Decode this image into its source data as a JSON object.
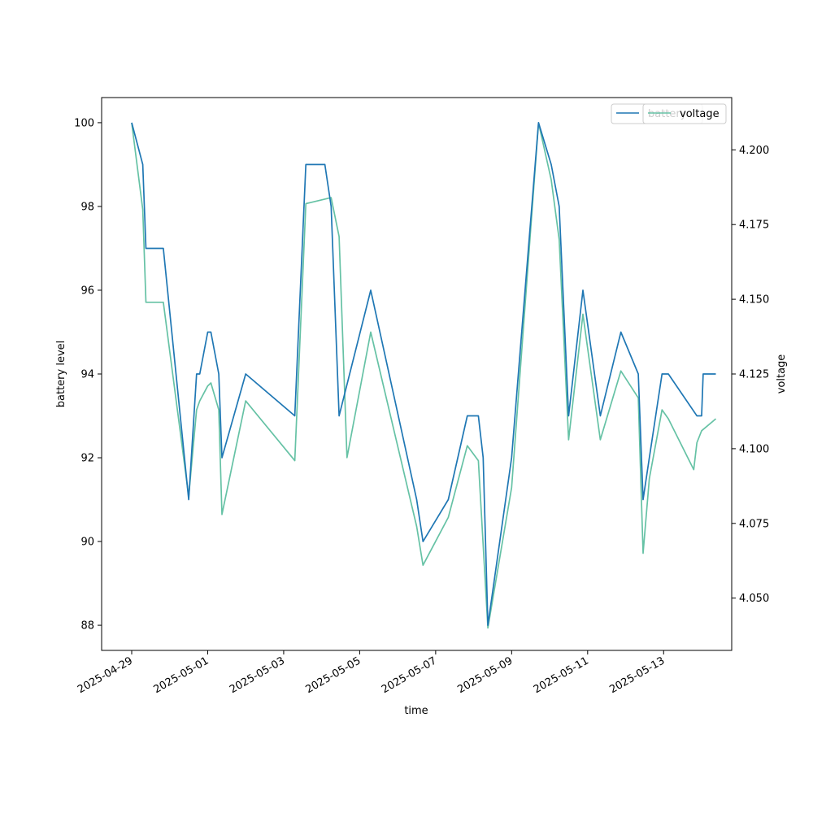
{
  "chart_data": {
    "type": "line",
    "title": "",
    "xlabel": "time",
    "ylabel": "battery level",
    "y2label": "voltage",
    "x_ticks": [
      "2025-04-29",
      "2025-05-01",
      "2025-05-03",
      "2025-05-05",
      "2025-05-07",
      "2025-05-09",
      "2025-05-11",
      "2025-05-13"
    ],
    "y_ticks": [
      88,
      90,
      92,
      94,
      96,
      98,
      100
    ],
    "y2_ticks": [
      "4.050",
      "4.075",
      "4.100",
      "4.125",
      "4.150",
      "4.175",
      "4.200"
    ],
    "xlim": [
      "2025-04-28T05:00",
      "2025-05-14T19:00"
    ],
    "ylim": [
      87.4,
      100.6
    ],
    "y2lim": [
      4.0325,
      4.2175
    ],
    "legend": {
      "placement": "top-right",
      "entries": [
        "battery",
        "voltage"
      ]
    },
    "colors": {
      "battery": "#1f77b4",
      "voltage": "#66c2a5"
    },
    "series": [
      {
        "name": "battery",
        "axis": "left",
        "x": [
          "2025-04-29T00:00",
          "2025-04-29T07:00",
          "2025-04-29T09:00",
          "2025-04-29T20:00",
          "2025-04-30T12:00",
          "2025-04-30T17:00",
          "2025-04-30T19:00",
          "2025-05-01T00:00",
          "2025-05-01T02:00",
          "2025-05-01T07:00",
          "2025-05-01T09:00",
          "2025-05-02T00:00",
          "2025-05-03T07:00",
          "2025-05-03T14:00",
          "2025-05-03T18:00",
          "2025-05-04T02:00",
          "2025-05-04T06:00",
          "2025-05-04T11:00",
          "2025-05-05T07:00",
          "2025-05-06T12:00",
          "2025-05-06T16:00",
          "2025-05-07T08:00",
          "2025-05-07T20:00",
          "2025-05-08T03:00",
          "2025-05-08T06:00",
          "2025-05-08T09:00",
          "2025-05-09T00:00",
          "2025-05-09T17:00",
          "2025-05-10T01:00",
          "2025-05-10T06:00",
          "2025-05-10T12:00",
          "2025-05-10T21:00",
          "2025-05-11T08:00",
          "2025-05-11T21:00",
          "2025-05-12T08:00",
          "2025-05-12T11:00",
          "2025-05-12T15:00",
          "2025-05-12T23:00",
          "2025-05-13T03:00",
          "2025-05-13T21:00",
          "2025-05-14T00:00",
          "2025-05-14T01:00",
          "2025-05-14T09:00"
        ],
        "values": [
          100,
          99,
          97,
          97,
          91,
          94,
          94,
          95,
          95,
          94,
          92,
          94,
          93,
          99,
          99,
          99,
          98,
          93,
          96,
          91,
          90,
          91,
          93,
          93,
          92,
          88,
          92,
          100,
          99,
          98,
          93,
          96,
          93,
          95,
          94,
          91,
          92,
          94,
          94,
          93,
          93,
          94,
          94
        ]
      },
      {
        "name": "voltage",
        "axis": "right",
        "x": [
          "2025-04-29T00:00",
          "2025-04-29T07:00",
          "2025-04-29T09:00",
          "2025-04-29T20:00",
          "2025-04-30T12:00",
          "2025-04-30T17:00",
          "2025-04-30T19:00",
          "2025-05-01T00:00",
          "2025-05-01T02:00",
          "2025-05-01T07:00",
          "2025-05-01T09:00",
          "2025-05-02T00:00",
          "2025-05-03T07:00",
          "2025-05-03T14:00",
          "2025-05-04T06:00",
          "2025-05-04T11:00",
          "2025-05-04T16:00",
          "2025-05-05T07:00",
          "2025-05-06T12:00",
          "2025-05-06T16:00",
          "2025-05-07T08:00",
          "2025-05-07T20:00",
          "2025-05-08T03:00",
          "2025-05-08T09:00",
          "2025-05-09T00:00",
          "2025-05-09T17:00",
          "2025-05-10T01:00",
          "2025-05-10T06:00",
          "2025-05-10T12:00",
          "2025-05-10T21:00",
          "2025-05-11T08:00",
          "2025-05-11T21:00",
          "2025-05-12T08:00",
          "2025-05-12T11:00",
          "2025-05-12T15:00",
          "2025-05-12T23:00",
          "2025-05-13T03:00",
          "2025-05-13T19:00",
          "2025-05-13T21:00",
          "2025-05-14T00:00",
          "2025-05-14T09:00"
        ],
        "values": [
          4.209,
          4.18,
          4.149,
          4.149,
          4.084,
          4.113,
          4.116,
          4.121,
          4.122,
          4.113,
          4.078,
          4.116,
          4.096,
          4.182,
          4.184,
          4.171,
          4.097,
          4.139,
          4.074,
          4.061,
          4.077,
          4.101,
          4.096,
          4.04,
          4.087,
          4.209,
          4.19,
          4.17,
          4.103,
          4.145,
          4.103,
          4.126,
          4.117,
          4.065,
          4.09,
          4.113,
          4.11,
          4.093,
          4.102,
          4.106,
          4.11
        ]
      }
    ]
  }
}
